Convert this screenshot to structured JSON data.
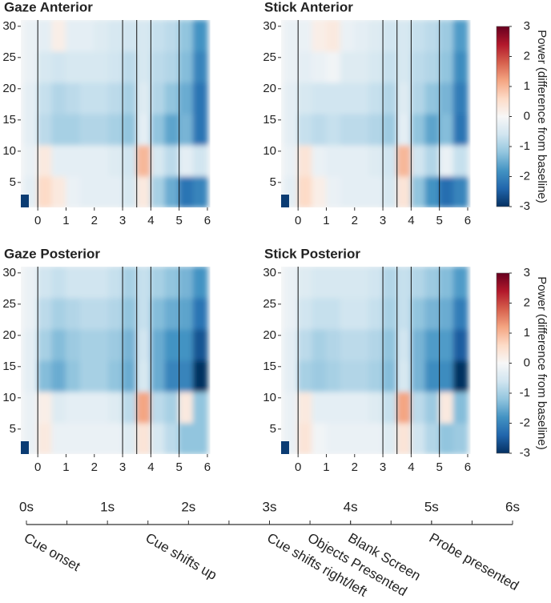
{
  "chart_data": [
    {
      "type": "heatmap",
      "title": "Gaze Anterior",
      "x": [
        -0.25,
        0.25,
        0.75,
        1.25,
        1.75,
        2.25,
        2.75,
        3.25,
        3.75,
        4.25,
        4.75,
        5.25,
        5.75
      ],
      "y": [
        3.5,
        8.5,
        13.5,
        18.5,
        23.5,
        28.5
      ],
      "z": [
        [
          -0.3,
          0.6,
          0.3,
          -0.2,
          -0.3,
          -0.3,
          -0.3,
          -0.5,
          0.3,
          -1.0,
          -1.5,
          -2.2,
          -2.0
        ],
        [
          -0.2,
          0.3,
          -0.3,
          -0.3,
          -0.3,
          -0.3,
          -0.4,
          -0.6,
          1.0,
          -0.5,
          -0.8,
          -0.3,
          -0.6
        ],
        [
          -0.3,
          -0.8,
          -1.0,
          -1.0,
          -0.9,
          -0.9,
          -1.0,
          -1.2,
          -0.3,
          -1.2,
          -1.6,
          -1.4,
          -2.2
        ],
        [
          -0.3,
          -0.7,
          -0.9,
          -0.8,
          -0.7,
          -0.7,
          -0.8,
          -1.0,
          -0.4,
          -0.9,
          -1.2,
          -1.5,
          -2.2
        ],
        [
          -0.2,
          -0.5,
          -0.6,
          -0.5,
          -0.5,
          -0.5,
          -0.6,
          -0.8,
          -0.5,
          -0.8,
          -0.9,
          -1.3,
          -2.0
        ],
        [
          -0.2,
          -0.3,
          0.2,
          -0.3,
          -0.3,
          -0.4,
          -0.5,
          -0.6,
          -0.5,
          -0.7,
          -0.8,
          -1.2,
          -1.8
        ]
      ],
      "xlim": [
        -0.6,
        6.1
      ],
      "ylim": [
        1,
        31
      ],
      "xticks": [
        0,
        1,
        2,
        3,
        4,
        5,
        6
      ],
      "yticks": [
        5,
        10,
        15,
        20,
        25,
        30
      ],
      "vlines": [
        0,
        3,
        3.5,
        4,
        5
      ],
      "clim": [
        -3,
        3
      ],
      "colormap": [
        "#053061",
        "#2166ac",
        "#4393c3",
        "#92c5de",
        "#d1e5f0",
        "#f7f7f7",
        "#fddbc7",
        "#f4a582",
        "#d6604d",
        "#b2182b",
        "#67001f"
      ]
    },
    {
      "type": "heatmap",
      "title": "Stick Anterior",
      "x": [
        -0.25,
        0.25,
        0.75,
        1.25,
        1.75,
        2.25,
        2.75,
        3.25,
        3.75,
        4.25,
        4.75,
        5.25,
        5.75
      ],
      "y": [
        3.5,
        8.5,
        13.5,
        18.5,
        23.5,
        28.5
      ],
      "z": [
        [
          -0.3,
          0.6,
          0.2,
          -0.2,
          -0.3,
          -0.3,
          -0.3,
          -0.5,
          0.4,
          -1.2,
          -1.8,
          -2.3,
          -2.0
        ],
        [
          -0.2,
          0.4,
          -0.2,
          -0.3,
          -0.3,
          -0.3,
          -0.4,
          -0.6,
          1.0,
          -0.6,
          -0.9,
          -0.2,
          -0.7
        ],
        [
          -0.3,
          -0.7,
          -0.8,
          -0.7,
          -0.8,
          -0.8,
          -0.9,
          -1.1,
          -0.3,
          -1.2,
          -1.6,
          -1.3,
          -2.2
        ],
        [
          -0.3,
          -0.5,
          -0.6,
          -0.6,
          -0.6,
          -0.6,
          -0.7,
          -0.9,
          -0.4,
          -0.9,
          -1.2,
          -1.4,
          -2.1
        ],
        [
          -0.2,
          -0.3,
          -0.2,
          -0.1,
          -0.4,
          -0.4,
          -0.5,
          -0.7,
          -0.5,
          -0.8,
          -0.9,
          -1.2,
          -1.9
        ],
        [
          -0.2,
          -0.2,
          0.2,
          0.3,
          -0.2,
          -0.3,
          -0.4,
          -0.6,
          -0.5,
          -0.7,
          -0.8,
          -1.1,
          -1.7
        ]
      ],
      "xlim": [
        -0.6,
        6.1
      ],
      "ylim": [
        1,
        31
      ],
      "xticks": [
        0,
        1,
        2,
        3,
        4,
        5,
        6
      ],
      "yticks": [
        5,
        10,
        15,
        20,
        25,
        30
      ],
      "vlines": [
        0,
        3,
        3.5,
        4,
        5
      ],
      "clim": [
        -3,
        3
      ],
      "cticks": [
        -3,
        -2,
        -1,
        0,
        1,
        2,
        3
      ],
      "colorbar_label": "Power (difference from baseline)",
      "colormap": [
        "#053061",
        "#2166ac",
        "#4393c3",
        "#92c5de",
        "#d1e5f0",
        "#f7f7f7",
        "#fddbc7",
        "#f4a582",
        "#d6604d",
        "#b2182b",
        "#67001f"
      ]
    },
    {
      "type": "heatmap",
      "title": "Gaze Posterior",
      "x": [
        -0.25,
        0.25,
        0.75,
        1.25,
        1.75,
        2.25,
        2.75,
        3.25,
        3.75,
        4.25,
        4.75,
        5.25,
        5.75
      ],
      "y": [
        3.5,
        8.5,
        13.5,
        18.5,
        23.5,
        28.5
      ],
      "z": [
        [
          -0.2,
          0.3,
          -0.2,
          -0.2,
          -0.2,
          -0.2,
          -0.2,
          -0.4,
          0.4,
          -0.5,
          -0.8,
          -1.2,
          -1.2
        ],
        [
          -0.2,
          0.2,
          -0.4,
          -0.3,
          -0.3,
          -0.3,
          -0.4,
          -0.8,
          1.2,
          -0.8,
          -1.0,
          0.3,
          -1.2
        ],
        [
          -0.3,
          -1.3,
          -1.5,
          -1.2,
          -1.0,
          -1.0,
          -1.2,
          -1.5,
          -0.5,
          -1.5,
          -2.0,
          -2.0,
          -3.0
        ],
        [
          -0.3,
          -1.0,
          -1.3,
          -1.1,
          -1.0,
          -1.0,
          -1.1,
          -1.4,
          -0.6,
          -1.5,
          -1.8,
          -1.8,
          -2.6
        ],
        [
          -0.2,
          -0.8,
          -1.0,
          -0.9,
          -0.8,
          -0.8,
          -0.9,
          -1.2,
          -0.7,
          -1.3,
          -1.5,
          -1.6,
          -2.2
        ],
        [
          -0.2,
          -0.6,
          -0.7,
          -0.6,
          -0.6,
          -0.6,
          -0.7,
          -1.0,
          -0.7,
          -1.0,
          -1.2,
          -1.4,
          -1.8
        ]
      ],
      "xlim": [
        -0.6,
        6.1
      ],
      "ylim": [
        1,
        31
      ],
      "xticks": [
        0,
        1,
        2,
        3,
        4,
        5,
        6
      ],
      "yticks": [
        5,
        10,
        15,
        20,
        25,
        30
      ],
      "vlines": [
        0,
        3,
        3.5,
        4,
        5
      ],
      "clim": [
        -3,
        3
      ],
      "colormap": [
        "#053061",
        "#2166ac",
        "#4393c3",
        "#92c5de",
        "#d1e5f0",
        "#f7f7f7",
        "#fddbc7",
        "#f4a582",
        "#d6604d",
        "#b2182b",
        "#67001f"
      ]
    },
    {
      "type": "heatmap",
      "title": "Stick Posterior",
      "x": [
        -0.25,
        0.25,
        0.75,
        1.25,
        1.75,
        2.25,
        2.75,
        3.25,
        3.75,
        4.25,
        4.75,
        5.25,
        5.75
      ],
      "y": [
        3.5,
        8.5,
        13.5,
        18.5,
        23.5,
        28.5
      ],
      "z": [
        [
          -0.2,
          0.4,
          -0.1,
          -0.2,
          -0.2,
          -0.2,
          -0.2,
          -0.4,
          0.4,
          -0.6,
          -0.9,
          -1.2,
          -1.1
        ],
        [
          -0.2,
          0.3,
          -0.3,
          -0.3,
          -0.3,
          -0.3,
          -0.4,
          -0.7,
          1.2,
          -0.8,
          -1.1,
          0.3,
          -1.3
        ],
        [
          -0.3,
          -1.0,
          -1.1,
          -1.0,
          -0.9,
          -0.9,
          -1.0,
          -1.3,
          -0.5,
          -1.4,
          -1.9,
          -1.9,
          -3.0
        ],
        [
          -0.3,
          -0.8,
          -1.0,
          -0.9,
          -0.8,
          -0.8,
          -0.9,
          -1.2,
          -0.6,
          -1.4,
          -1.7,
          -1.7,
          -2.5
        ],
        [
          -0.2,
          -0.6,
          -0.7,
          -0.7,
          -0.6,
          -0.6,
          -0.7,
          -1.0,
          -0.7,
          -1.2,
          -1.4,
          -1.5,
          -2.1
        ],
        [
          -0.2,
          -0.4,
          -0.5,
          -0.5,
          -0.5,
          -0.5,
          -0.6,
          -0.9,
          -0.7,
          -0.9,
          -1.1,
          -1.3,
          -1.7
        ]
      ],
      "xlim": [
        -0.6,
        6.1
      ],
      "ylim": [
        1,
        31
      ],
      "xticks": [
        0,
        1,
        2,
        3,
        4,
        5,
        6
      ],
      "yticks": [
        5,
        10,
        15,
        20,
        25,
        30
      ],
      "vlines": [
        0,
        3,
        3.5,
        4,
        5
      ],
      "clim": [
        -3,
        3
      ],
      "cticks": [
        -3,
        -2,
        -1,
        0,
        1,
        2,
        3
      ],
      "colorbar_label": "Power (difference from baseline)",
      "colormap": [
        "#053061",
        "#2166ac",
        "#4393c3",
        "#92c5de",
        "#d1e5f0",
        "#f7f7f7",
        "#fddbc7",
        "#f4a582",
        "#d6604d",
        "#b2182b",
        "#67001f"
      ]
    },
    {
      "type": "timeline",
      "xlim": [
        0,
        6
      ],
      "xticks": [
        {
          "value": 0,
          "label": "0s"
        },
        {
          "value": 1,
          "label": "1s"
        },
        {
          "value": 2,
          "label": "2s"
        },
        {
          "value": 3,
          "label": "3s"
        },
        {
          "value": 4,
          "label": "4s"
        },
        {
          "value": 5,
          "label": "5s"
        },
        {
          "value": 6,
          "label": "6s"
        }
      ],
      "minor_ticks": [
        0.5,
        2.5,
        4.5,
        5.5
      ],
      "events": [
        {
          "time": 0,
          "label": "Cue onset"
        },
        {
          "time": 1.5,
          "label": "Cue shifts up"
        },
        {
          "time": 3,
          "label": "Cue shifts right/left"
        },
        {
          "time": 3.5,
          "label": "Objects Presented"
        },
        {
          "time": 4,
          "label": "Blank Screen"
        },
        {
          "time": 5,
          "label": "Probe presented"
        }
      ]
    }
  ]
}
